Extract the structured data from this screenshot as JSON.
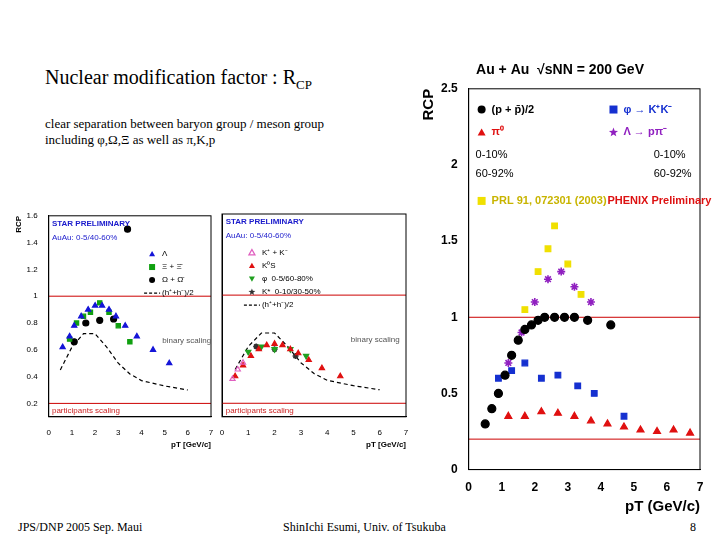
{
  "header": {
    "title": "Nuclear modification factor : R",
    "title_subscript": "CP",
    "subtitle": [
      "clear separation between baryon group  / meson group",
      "including φ,Ω,Ξ as well as π,K,p"
    ]
  },
  "footer": {
    "left": "JPS/DNP 2005 Sep. Maui",
    "center": "ShinIchi Esumi, Univ. of Tsukuba",
    "right": "8"
  },
  "chart_data": [
    {
      "type": "scatter",
      "x_label": "pT [GeV/c]",
      "y_label": "RCP",
      "xlim": [
        0,
        7
      ],
      "ylim": [
        0.1,
        1.6
      ],
      "xticks": [
        0,
        1,
        2,
        3,
        4,
        5,
        6,
        7
      ],
      "yticks": [
        0.2,
        0.4,
        0.6,
        0.8,
        1,
        1.2,
        1.4,
        1.6
      ],
      "grid": false,
      "legend": "upper right",
      "reference_lines": {
        "values": [
          1,
          0.2
        ],
        "color": "#cc0000"
      },
      "annotations": [
        "STAR PRELIMINARY",
        "AuAu: 0-5/40-60%",
        "binary scaling",
        "participants scaling"
      ],
      "series": [
        {
          "name": "Λ",
          "color": "#1515d8",
          "marker": "triangle",
          "x": [
            0.6,
            0.9,
            1.1,
            1.4,
            1.7,
            2.0,
            2.3,
            2.6,
            2.9,
            3.3,
            3.8,
            4.5,
            5.2
          ],
          "values": [
            0.62,
            0.7,
            0.78,
            0.85,
            0.9,
            0.93,
            0.93,
            0.9,
            0.85,
            0.78,
            0.7,
            0.6,
            0.5
          ]
        },
        {
          "name": "Ξ + Ξ̄",
          "color": "#10a010",
          "marker": "square",
          "x": [
            0.9,
            1.2,
            1.5,
            1.8,
            2.2,
            2.6,
            3.0,
            3.5
          ],
          "values": [
            0.68,
            0.8,
            0.85,
            0.88,
            0.95,
            0.88,
            0.78,
            0.66
          ]
        },
        {
          "name": "Ω + Ω̄",
          "color": "#000000",
          "marker": "circle",
          "x": [
            1.1,
            1.6,
            2.2,
            2.8,
            3.4
          ],
          "values": [
            0.66,
            0.8,
            0.82,
            0.83,
            1.5
          ]
        },
        {
          "name": "(h⁺+h⁻)/2",
          "color": "#000000",
          "marker": "none",
          "line_style": "dashed",
          "x": [
            0.5,
            1,
            1.5,
            2,
            2.5,
            3,
            3.5,
            4,
            5,
            6
          ],
          "values": [
            0.45,
            0.62,
            0.72,
            0.72,
            0.62,
            0.5,
            0.42,
            0.37,
            0.33,
            0.3
          ]
        }
      ]
    },
    {
      "type": "scatter",
      "x_label": "pT [GeV/c]",
      "xlim": [
        0,
        7
      ],
      "ylim": [
        0.1,
        1.6
      ],
      "xticks": [
        0,
        1,
        2,
        3,
        4,
        5,
        6,
        7
      ],
      "yticks": [
        0.2,
        0.4,
        0.6,
        0.8,
        1,
        1.2,
        1.4,
        1.6
      ],
      "grid": false,
      "legend": "upper left",
      "tick_labels": "x",
      "reference_lines": {
        "values": [
          1,
          0.2
        ],
        "color": "#cc0000"
      },
      "annotations": [
        "STAR PRELIMINARY",
        "AuAu: 0-5/40-60%",
        "binary scaling",
        "participants scaling"
      ],
      "series": [
        {
          "name": "K⁺ + K⁻",
          "color": "#e060c0",
          "marker": "open_triangle",
          "x": [
            0.4,
            0.6,
            0.8
          ],
          "values": [
            0.38,
            0.45,
            0.5
          ]
        },
        {
          "name": "K⁰S",
          "color": "#e01010",
          "marker": "triangle",
          "x": [
            0.5,
            0.8,
            1.1,
            1.4,
            1.7,
            2.0,
            2.3,
            2.6,
            2.9,
            3.3,
            3.8,
            4.5
          ],
          "values": [
            0.4,
            0.48,
            0.55,
            0.6,
            0.63,
            0.64,
            0.63,
            0.6,
            0.57,
            0.52,
            0.46,
            0.4
          ]
        },
        {
          "name": "φ  0-5/60-80%",
          "color": "#20a020",
          "marker": "triangle_down",
          "x": [
            1.0,
            1.5,
            2.0,
            2.6,
            3.2
          ],
          "values": [
            0.58,
            0.62,
            0.6,
            0.6,
            0.55
          ]
        },
        {
          "name": "K*  0-10/30-50%",
          "color": "#303030",
          "marker": "star",
          "x": [
            1.3,
            2.0,
            2.8
          ],
          "values": [
            0.62,
            0.6,
            0.55
          ]
        },
        {
          "name": "(h⁺+h⁻)/2",
          "color": "#000000",
          "marker": "none",
          "line_style": "dashed",
          "x": [
            0.5,
            1,
            1.5,
            2,
            2.5,
            3,
            3.5,
            4,
            5,
            6
          ],
          "values": [
            0.45,
            0.62,
            0.72,
            0.72,
            0.62,
            0.5,
            0.42,
            0.37,
            0.33,
            0.3
          ]
        }
      ]
    },
    {
      "type": "scatter",
      "title": "Au + Au  √sNN = 200 GeV",
      "x_label": "pT (GeV/c)",
      "y_label": "RCP",
      "xlim": [
        0,
        7
      ],
      "ylim": [
        0,
        2.5
      ],
      "xticks": [
        0,
        1,
        2,
        3,
        4,
        5,
        6,
        7
      ],
      "yticks": [
        0,
        0.5,
        1,
        1.5,
        2,
        2.5
      ],
      "grid": false,
      "legend": "top",
      "reference_lines": {
        "values": [
          1,
          0.2
        ],
        "color": "#cc0000"
      },
      "annotations": [
        "0-10%",
        "60-92%",
        "0-10%",
        "60-92%",
        "PHENIX Preliminary"
      ],
      "series": [
        {
          "name": "(p + p̄)/2",
          "color": "#000000",
          "marker": "circle",
          "x": [
            0.5,
            0.7,
            0.9,
            1.1,
            1.3,
            1.5,
            1.7,
            1.9,
            2.1,
            2.3,
            2.6,
            2.9,
            3.2,
            3.6,
            4.3
          ],
          "values": [
            0.3,
            0.4,
            0.5,
            0.62,
            0.75,
            0.85,
            0.92,
            0.95,
            0.98,
            1.0,
            1.0,
            1.0,
            1.0,
            0.98,
            0.95
          ]
        },
        {
          "name": "π⁰",
          "color": "#e01010",
          "marker": "triangle",
          "x": [
            1.2,
            1.7,
            2.2,
            2.7,
            3.2,
            3.7,
            4.2,
            4.7,
            5.2,
            5.7,
            6.2,
            6.7
          ],
          "values": [
            0.35,
            0.35,
            0.38,
            0.37,
            0.35,
            0.32,
            0.3,
            0.28,
            0.26,
            0.25,
            0.26,
            0.24
          ]
        },
        {
          "name": "φ → K⁺K⁻",
          "color": "#1530d0",
          "marker": "square",
          "x": [
            0.9,
            1.3,
            1.7,
            2.2,
            2.7,
            3.3,
            3.8,
            4.7
          ],
          "values": [
            0.6,
            0.65,
            0.7,
            0.6,
            0.62,
            0.55,
            0.5,
            0.35
          ]
        },
        {
          "name": "Λ → pπ⁻",
          "color": "#9020c0",
          "marker": "star",
          "x": [
            1.2,
            1.6,
            2.0,
            2.4,
            2.8,
            3.2,
            3.7
          ],
          "values": [
            0.7,
            0.9,
            1.1,
            1.25,
            1.3,
            1.2,
            1.1
          ]
        },
        {
          "name": "PRL 91, 072301 (2003)",
          "color": "#f0e000",
          "marker": "square",
          "x": [
            1.7,
            2.1,
            2.4,
            2.6,
            3.0,
            3.4
          ],
          "values": [
            1.05,
            1.3,
            1.45,
            1.6,
            1.35,
            1.15
          ]
        }
      ]
    }
  ]
}
